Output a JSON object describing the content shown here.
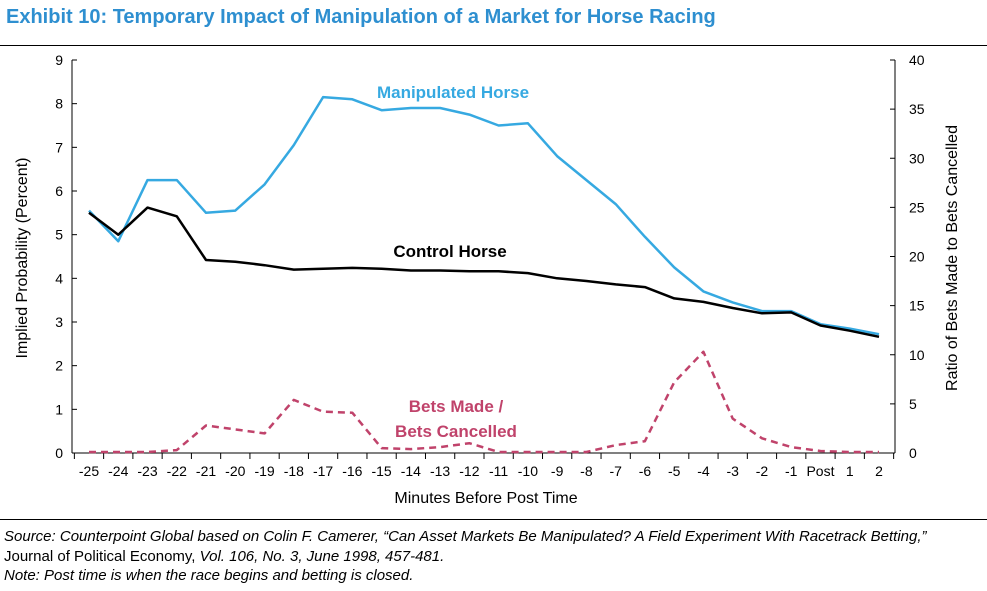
{
  "title": "Exhibit 10: Temporary Impact of Manipulation of a Market for Horse Racing",
  "source": {
    "part1": "Source: Counterpoint Global based on Colin F. Camerer, “Can Asset Markets Be Manipulated? A Field Experiment With Racetrack Betting,”",
    "journal": "Journal of Political Economy,",
    "part2": "Vol. 106, No. 3, June 1998, 457-481."
  },
  "note": "Note: Post time is when the race begins and betting is closed.",
  "chart_data": {
    "type": "line",
    "xlabel": "Minutes Before Post Time",
    "ylabel": "Implied Probability (Percent)",
    "y2label": "Ratio of Bets Made to Bets Cancelled",
    "ylim": [
      0,
      9
    ],
    "y2lim": [
      0,
      40
    ],
    "yticks": [
      "0",
      "1",
      "2",
      "3",
      "4",
      "5",
      "6",
      "7",
      "8",
      "9"
    ],
    "y2ticks": [
      "0",
      "5",
      "10",
      "15",
      "20",
      "25",
      "30",
      "35",
      "40"
    ],
    "categories": [
      "-25",
      "-24",
      "-23",
      "-22",
      "-21",
      "-20",
      "-19",
      "-18",
      "-17",
      "-16",
      "-15",
      "-14",
      "-13",
      "-12",
      "-11",
      "-10",
      "-9",
      "-8",
      "-7",
      "-6",
      "-5",
      "-4",
      "-3",
      "-2",
      "-1",
      "Post",
      "1",
      "2"
    ],
    "series": [
      {
        "name": "Manipulated Horse",
        "axis": "left",
        "color": "#36a9e1",
        "style": "solid",
        "values": [
          5.55,
          4.85,
          6.25,
          6.25,
          5.5,
          5.55,
          6.15,
          7.05,
          8.15,
          8.1,
          7.85,
          7.9,
          7.9,
          7.75,
          7.5,
          7.55,
          6.8,
          6.25,
          5.7,
          4.95,
          4.25,
          3.7,
          3.45,
          3.25,
          3.25,
          2.95,
          2.85,
          2.72
        ]
      },
      {
        "name": "Control Horse",
        "axis": "left",
        "color": "#000000",
        "style": "solid",
        "values": [
          5.5,
          5.0,
          5.62,
          5.42,
          4.42,
          4.38,
          4.3,
          4.2,
          4.22,
          4.24,
          4.22,
          4.18,
          4.18,
          4.16,
          4.16,
          4.12,
          4.0,
          3.94,
          3.86,
          3.8,
          3.54,
          3.46,
          3.32,
          3.2,
          3.22,
          2.92,
          2.8,
          2.66
        ]
      },
      {
        "name": "Bets Made / Bets Cancelled",
        "label_lines": [
          "Bets Made /",
          "Bets Cancelled"
        ],
        "axis": "right",
        "color": "#c0436b",
        "style": "dashed",
        "values": [
          0.1,
          0.1,
          0.1,
          0.3,
          2.8,
          2.4,
          2.0,
          5.4,
          4.2,
          4.1,
          0.5,
          0.4,
          0.6,
          1.0,
          0.1,
          0.1,
          0.1,
          0.1,
          0.8,
          1.2,
          7.2,
          10.3,
          3.5,
          1.5,
          0.6,
          0.2,
          0.1,
          0.1
        ]
      }
    ],
    "grid": false,
    "legend": "inline labels"
  }
}
